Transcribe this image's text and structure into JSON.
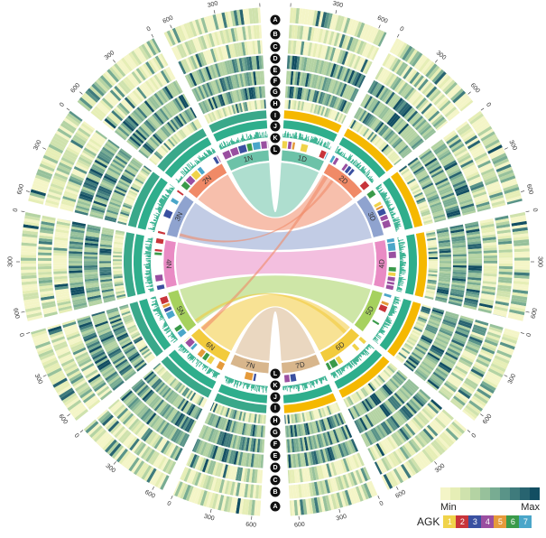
{
  "diagram": {
    "tracks": [
      "A",
      "B",
      "C",
      "D",
      "E",
      "F",
      "G",
      "H",
      "I",
      "J",
      "K",
      "L"
    ],
    "chromosomes": [
      {
        "label": "1D",
        "color": "#6cc2a8"
      },
      {
        "label": "2D",
        "color": "#f08a67"
      },
      {
        "label": "3D",
        "color": "#8fa3cf"
      },
      {
        "label": "4D",
        "color": "#e98bc4"
      },
      {
        "label": "5D",
        "color": "#a6d15e"
      },
      {
        "label": "6D",
        "color": "#f2cb3d"
      },
      {
        "label": "7D",
        "color": "#d8b68c"
      },
      {
        "label": "7N",
        "color": "#d8b68c"
      },
      {
        "label": "6N",
        "color": "#f2cb3d"
      },
      {
        "label": "5N",
        "color": "#a6d15e"
      },
      {
        "label": "4N",
        "color": "#e98bc4"
      },
      {
        "label": "3N",
        "color": "#8fa3cf"
      },
      {
        "label": "2N",
        "color": "#f08a67"
      },
      {
        "label": "1N",
        "color": "#6cc2a8"
      }
    ],
    "tick_labels": [
      "0",
      "300",
      "600"
    ],
    "heat_colors": [
      "#f4f5c7",
      "#e6eeb6",
      "#cfe2ad",
      "#b4d3a3",
      "#97c19b",
      "#78ac92",
      "#5a9488",
      "#3f7b7c",
      "#286470",
      "#124e62"
    ]
  },
  "legend": {
    "min_label": "Min",
    "max_label": "Max",
    "agk_label": "AGK",
    "agk_items": [
      {
        "label": "1",
        "color": "#f0d34a"
      },
      {
        "label": "2",
        "color": "#c8343a"
      },
      {
        "label": "3",
        "color": "#3a50a0"
      },
      {
        "label": "4",
        "color": "#9a4fa0"
      },
      {
        "label": "5",
        "color": "#e59a3a"
      },
      {
        "label": "6",
        "color": "#3a9a4a"
      },
      {
        "label": "7",
        "color": "#4aa6c9"
      }
    ]
  }
}
